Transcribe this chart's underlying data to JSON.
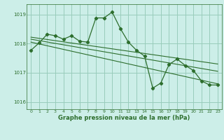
{
  "background_color": "#cceee8",
  "grid_color": "#99ccbb",
  "line_color": "#2d6e2d",
  "title": "Graphe pression niveau de la mer (hPa)",
  "xlim": [
    -0.5,
    23.5
  ],
  "ylim": [
    1015.75,
    1019.35
  ],
  "yticks": [
    1016,
    1017,
    1018,
    1019
  ],
  "xticks": [
    0,
    1,
    2,
    3,
    4,
    5,
    6,
    7,
    8,
    9,
    10,
    11,
    12,
    13,
    14,
    15,
    16,
    17,
    18,
    19,
    20,
    21,
    22,
    23
  ],
  "series": [
    {
      "x": [
        0,
        1,
        2,
        3,
        4,
        5,
        6,
        7,
        8,
        9,
        10,
        11,
        12,
        13,
        14,
        15,
        16,
        17,
        18,
        19,
        20,
        21,
        22,
        23
      ],
      "y": [
        1017.77,
        1018.02,
        1018.32,
        1018.27,
        1018.15,
        1018.27,
        1018.08,
        1018.05,
        1018.88,
        1018.88,
        1019.08,
        1018.52,
        1018.05,
        1017.77,
        1017.57,
        1016.47,
        1016.65,
        1017.28,
        1017.47,
        1017.25,
        1017.08,
        1016.72,
        1016.58,
        1016.58
      ],
      "marker": true
    },
    {
      "x": [
        0,
        23
      ],
      "y": [
        1018.05,
        1016.62
      ],
      "marker": false
    },
    {
      "x": [
        0,
        23
      ],
      "y": [
        1018.15,
        1017.05
      ],
      "marker": false
    },
    {
      "x": [
        0,
        23
      ],
      "y": [
        1018.22,
        1017.3
      ],
      "marker": false
    }
  ]
}
